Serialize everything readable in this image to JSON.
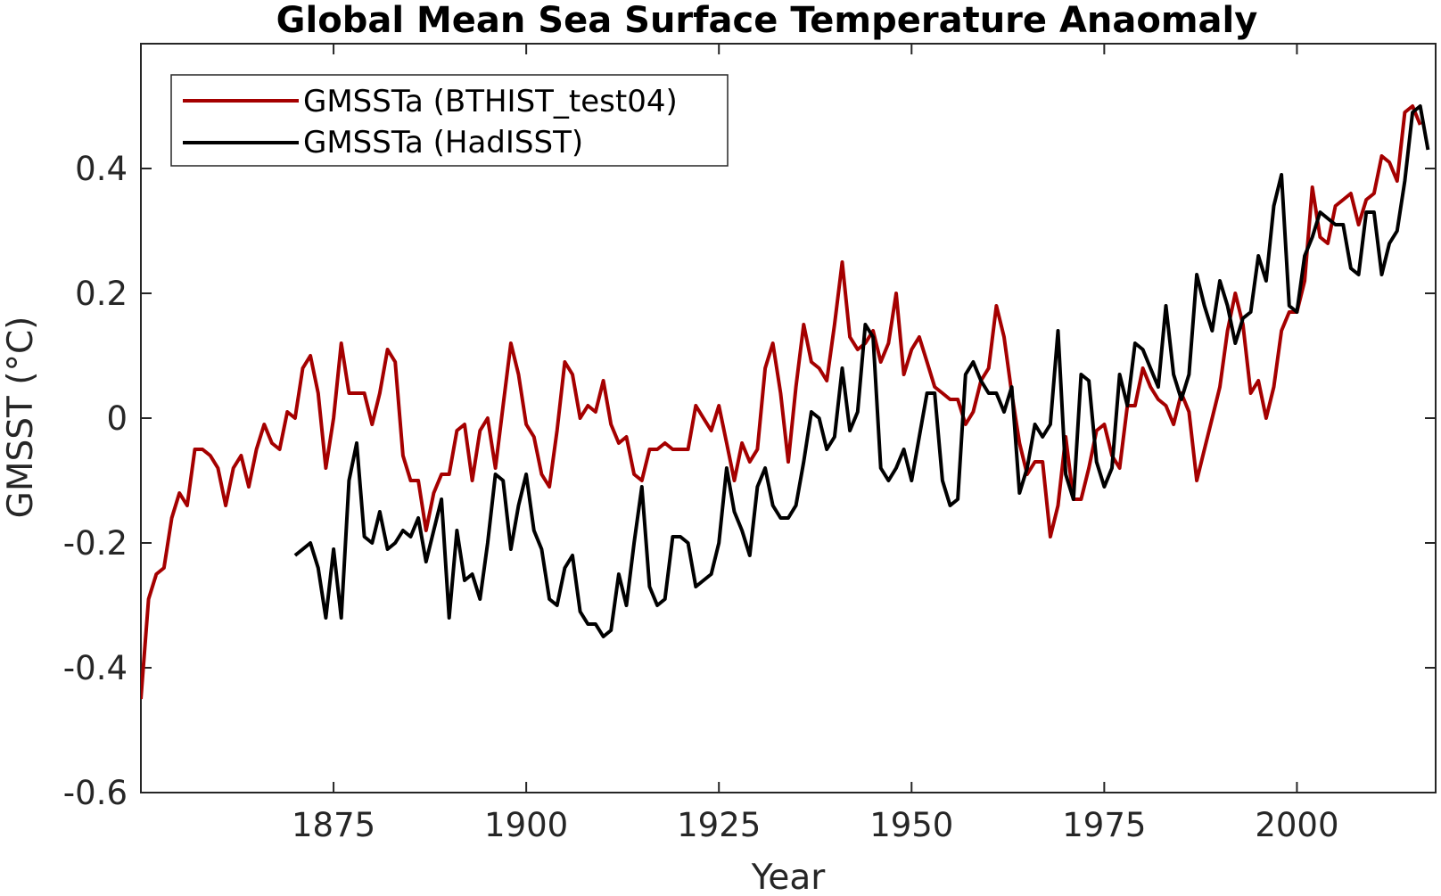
{
  "chart_data": {
    "type": "line",
    "title": "Global Mean Sea Surface Temperature Anaomaly",
    "xlabel": "Year",
    "ylabel": "GMSST (°C)",
    "xlim": [
      1850,
      2018
    ],
    "ylim": [
      -0.6,
      0.6
    ],
    "xticks": [
      1875,
      1900,
      1925,
      1950,
      1975,
      2000
    ],
    "xtick_labels": [
      "1875",
      "1900",
      "1925",
      "1950",
      "1975",
      "2000"
    ],
    "yticks": [
      -0.6,
      -0.4,
      -0.2,
      0,
      0.2,
      0.4
    ],
    "ytick_labels": [
      "-0.6",
      "-0.4",
      "-0.2",
      "0",
      "0.2",
      "0.4"
    ],
    "grid": false,
    "legend_position": "top-left",
    "series": [
      {
        "name": "GMSSTa (BTHIST_test04)",
        "color": "#a50000",
        "x_start": 1850,
        "values": [
          -0.45,
          -0.29,
          -0.25,
          -0.24,
          -0.16,
          -0.12,
          -0.14,
          -0.05,
          -0.05,
          -0.06,
          -0.08,
          -0.14,
          -0.08,
          -0.06,
          -0.11,
          -0.05,
          -0.01,
          -0.04,
          -0.05,
          0.01,
          0.0,
          0.08,
          0.1,
          0.04,
          -0.08,
          0.0,
          0.12,
          0.04,
          0.04,
          0.04,
          -0.01,
          0.04,
          0.11,
          0.09,
          -0.06,
          -0.1,
          -0.1,
          -0.18,
          -0.12,
          -0.09,
          -0.09,
          -0.02,
          -0.01,
          -0.1,
          -0.02,
          0.0,
          -0.08,
          0.02,
          0.12,
          0.07,
          -0.01,
          -0.03,
          -0.09,
          -0.11,
          -0.02,
          0.09,
          0.07,
          0.0,
          0.02,
          0.01,
          0.06,
          -0.01,
          -0.04,
          -0.03,
          -0.09,
          -0.1,
          -0.05,
          -0.05,
          -0.04,
          -0.05,
          -0.05,
          -0.05,
          0.02,
          0.0,
          -0.02,
          0.02,
          -0.04,
          -0.1,
          -0.04,
          -0.07,
          -0.05,
          0.08,
          0.12,
          0.04,
          -0.07,
          0.05,
          0.15,
          0.09,
          0.08,
          0.06,
          0.15,
          0.25,
          0.13,
          0.11,
          0.12,
          0.14,
          0.09,
          0.12,
          0.2,
          0.07,
          0.11,
          0.13,
          0.09,
          0.05,
          0.04,
          0.03,
          0.03,
          -0.01,
          0.01,
          0.06,
          0.08,
          0.18,
          0.13,
          0.04,
          -0.04,
          -0.09,
          -0.07,
          -0.07,
          -0.19,
          -0.14,
          -0.03,
          -0.13,
          -0.13,
          -0.08,
          -0.02,
          -0.01,
          -0.06,
          -0.08,
          0.02,
          0.02,
          0.08,
          0.05,
          0.03,
          0.02,
          -0.01,
          0.04,
          0.01,
          -0.1,
          -0.05,
          0.0,
          0.05,
          0.14,
          0.2,
          0.15,
          0.04,
          0.06,
          0.0,
          0.05,
          0.14,
          0.17,
          0.17,
          0.22,
          0.37,
          0.29,
          0.28,
          0.34,
          0.35,
          0.36,
          0.31,
          0.35,
          0.36,
          0.42,
          0.41,
          0.38,
          0.49,
          0.5,
          0.47
        ]
      },
      {
        "name": "GMSSTa (HadISST)",
        "color": "#000000",
        "x_start": 1870,
        "values": [
          -0.22,
          -0.21,
          -0.2,
          -0.24,
          -0.32,
          -0.21,
          -0.32,
          -0.1,
          -0.04,
          -0.19,
          -0.2,
          -0.15,
          -0.21,
          -0.2,
          -0.18,
          -0.19,
          -0.16,
          -0.23,
          -0.18,
          -0.13,
          -0.32,
          -0.18,
          -0.26,
          -0.25,
          -0.29,
          -0.2,
          -0.09,
          -0.1,
          -0.21,
          -0.14,
          -0.09,
          -0.18,
          -0.21,
          -0.29,
          -0.3,
          -0.24,
          -0.22,
          -0.31,
          -0.33,
          -0.33,
          -0.35,
          -0.34,
          -0.25,
          -0.3,
          -0.2,
          -0.11,
          -0.27,
          -0.3,
          -0.29,
          -0.19,
          -0.19,
          -0.2,
          -0.27,
          -0.26,
          -0.25,
          -0.2,
          -0.08,
          -0.15,
          -0.18,
          -0.22,
          -0.11,
          -0.08,
          -0.14,
          -0.16,
          -0.16,
          -0.14,
          -0.07,
          0.01,
          0.0,
          -0.05,
          -0.03,
          0.08,
          -0.02,
          0.01,
          0.15,
          0.13,
          -0.08,
          -0.1,
          -0.08,
          -0.05,
          -0.1,
          -0.03,
          0.04,
          0.04,
          -0.1,
          -0.14,
          -0.13,
          0.07,
          0.09,
          0.06,
          0.04,
          0.04,
          0.01,
          0.05,
          -0.12,
          -0.08,
          -0.01,
          -0.03,
          -0.01,
          0.14,
          -0.09,
          -0.13,
          0.07,
          0.06,
          -0.07,
          -0.11,
          -0.08,
          0.07,
          0.02,
          0.12,
          0.11,
          0.08,
          0.05,
          0.18,
          0.07,
          0.03,
          0.07,
          0.23,
          0.18,
          0.14,
          0.22,
          0.18,
          0.12,
          0.16,
          0.17,
          0.26,
          0.22,
          0.34,
          0.39,
          0.18,
          0.17,
          0.26,
          0.29,
          0.33,
          0.32,
          0.31,
          0.31,
          0.24,
          0.23,
          0.33,
          0.33,
          0.23,
          0.28,
          0.3,
          0.38,
          0.49,
          0.5,
          0.43
        ]
      }
    ]
  }
}
